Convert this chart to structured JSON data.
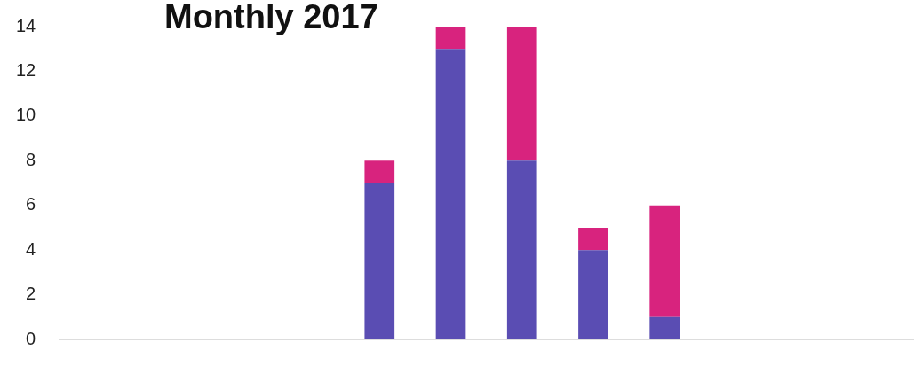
{
  "chart_data": {
    "type": "bar",
    "title": "Monthly 2017",
    "stacked": true,
    "categories": [
      null,
      null,
      null,
      null,
      null,
      null,
      null,
      null,
      null,
      null,
      null,
      null
    ],
    "series": [
      {
        "color": "#5a4db3",
        "values": [
          null,
          null,
          null,
          null,
          7,
          13,
          8,
          4,
          1,
          null,
          null,
          null
        ]
      },
      {
        "color": "#d8237e",
        "values": [
          null,
          null,
          null,
          null,
          1,
          1,
          6,
          1,
          5,
          null,
          null,
          null
        ]
      }
    ],
    "ylim": [
      0,
      14
    ],
    "yticks": [
      0,
      2,
      4,
      6,
      8,
      10,
      12,
      14
    ],
    "grid": false,
    "legend": false,
    "tick_labels": "y"
  }
}
